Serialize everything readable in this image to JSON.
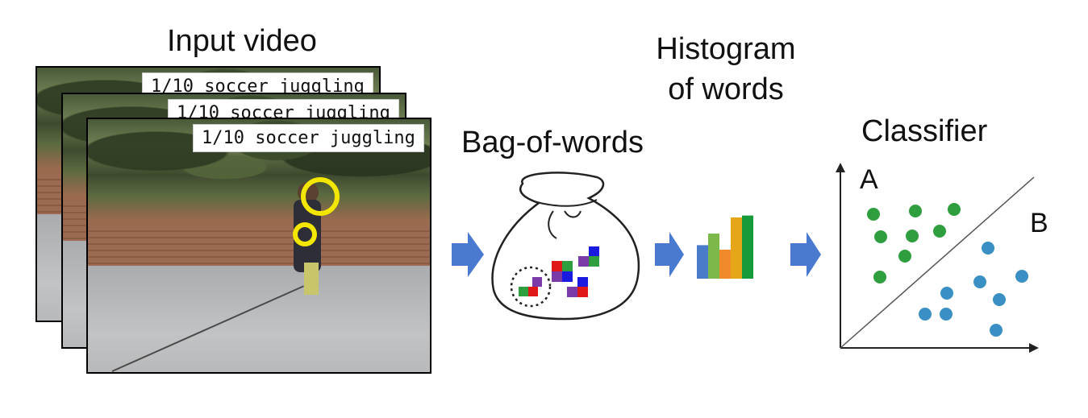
{
  "titles": {
    "input_video": "Input video",
    "histogram": "Histogram of words",
    "bag_of_words": "Bag-of-words",
    "classifier": "Classifier"
  },
  "video_frames": [
    {
      "caption": "1/10 soccer juggling"
    },
    {
      "caption": "1/10 soccer juggling"
    },
    {
      "caption": "1/10 soccer juggling"
    }
  ],
  "classifier": {
    "class_a_label": "A",
    "class_b_label": "B",
    "class_a_color": "#2e9e3e",
    "class_b_color": "#3a8fc4"
  },
  "histogram_bars": [
    {
      "color": "#4a7bc8",
      "value": 0.52
    },
    {
      "color": "#7db84a",
      "value": 0.7
    },
    {
      "color": "#f08a2a",
      "value": 0.45
    },
    {
      "color": "#e6a619",
      "value": 0.95
    },
    {
      "color": "#169a3a",
      "value": 0.98
    }
  ],
  "arrow_color": "#4a79d0",
  "icons": [
    "arrow-right-icon",
    "bag-icon",
    "histogram-icon",
    "scatter-plot-icon"
  ]
}
